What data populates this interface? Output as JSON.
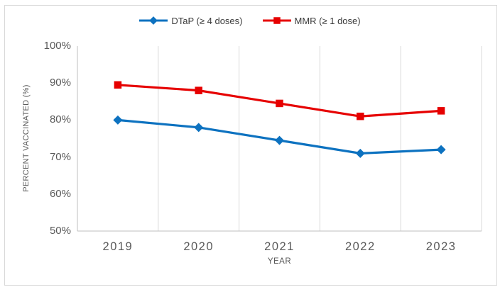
{
  "chart_data": {
    "type": "line",
    "title": "",
    "x_categories": [
      "2019",
      "2020",
      "2021",
      "2022",
      "2023"
    ],
    "series": [
      {
        "name": "DTaP (≥ 4 doses)",
        "marker": "diamond",
        "color": "#0d72c0",
        "values": [
          80,
          78,
          74.5,
          71,
          72
        ]
      },
      {
        "name": "MMR (≥ 1 dose)",
        "marker": "square",
        "color": "#e60000",
        "values": [
          89.5,
          88,
          84.5,
          81,
          82.5
        ]
      }
    ],
    "xlabel": "YEAR",
    "ylabel": "PERCENT VACCINATED (%)",
    "ylim": [
      50,
      100
    ],
    "ytick_values": [
      100,
      90,
      80,
      70,
      60,
      50
    ],
    "ytick_labels": [
      "100%",
      "90%",
      "80%",
      "70%",
      "60%",
      "50%"
    ],
    "grid": "vertical-only",
    "grid_color": "#d9d9d9",
    "axis_color": "#bfbfbf",
    "tick_label_color": "#595959",
    "legend_position": "top-center"
  }
}
